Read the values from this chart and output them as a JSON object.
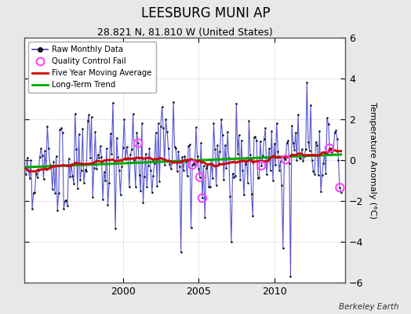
{
  "title": "LEESBURG MUNI AP",
  "subtitle": "28.821 N, 81.810 W (United States)",
  "ylabel": "Temperature Anomaly (°C)",
  "attribution": "Berkeley Earth",
  "x_start_year": 1993.5,
  "x_end_year": 2014.7,
  "ylim": [
    -6,
    6
  ],
  "yticks": [
    -6,
    -4,
    -2,
    0,
    2,
    4,
    6
  ],
  "xticks": [
    2000,
    2005,
    2010
  ],
  "background_color": "#e8e8e8",
  "plot_bg_color": "#ffffff",
  "raw_line_color": "#4444cc",
  "raw_dot_color": "#111111",
  "ma_color": "#cc0000",
  "trend_color": "#00aa00",
  "qc_color": "#ff44ff",
  "legend_bg": "#ffffff",
  "grid_color": "#cccccc",
  "title_fontsize": 12,
  "subtitle_fontsize": 9,
  "tick_fontsize": 9,
  "label_fontsize": 8
}
